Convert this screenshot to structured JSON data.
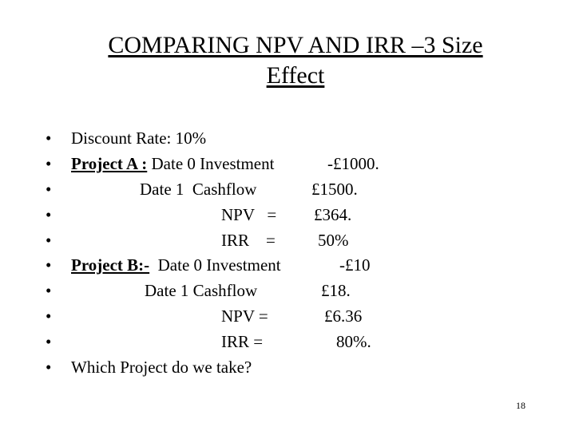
{
  "slide": {
    "title_line1": "COMPARING NPV AND IRR –3  Size",
    "title_line2": "Effect",
    "bullet_glyph": "•",
    "page_number": "18"
  },
  "bullets": {
    "b0": {
      "text": "Discount Rate: 10%"
    },
    "b1": {
      "label": "Project A :",
      "text": " Date 0 Investment",
      "value": "-£1000."
    },
    "b2": {
      "text": "Date 1  Cashflow",
      "value": "£1500."
    },
    "b3": {
      "text": "NPV   =",
      "value": "£364."
    },
    "b4": {
      "text": "IRR    =",
      "value": "50%"
    },
    "b5": {
      "label": "Project B:-",
      "text": "  Date 0 Investment",
      "value": "-£10"
    },
    "b6": {
      "text": "Date 1 Cashflow",
      "value": "£18."
    },
    "b7": {
      "text": "NPV =",
      "value": "£6.36"
    },
    "b8": {
      "text": "IRR =",
      "value": "80%."
    },
    "b9": {
      "text": "Which Project do we take?"
    }
  }
}
